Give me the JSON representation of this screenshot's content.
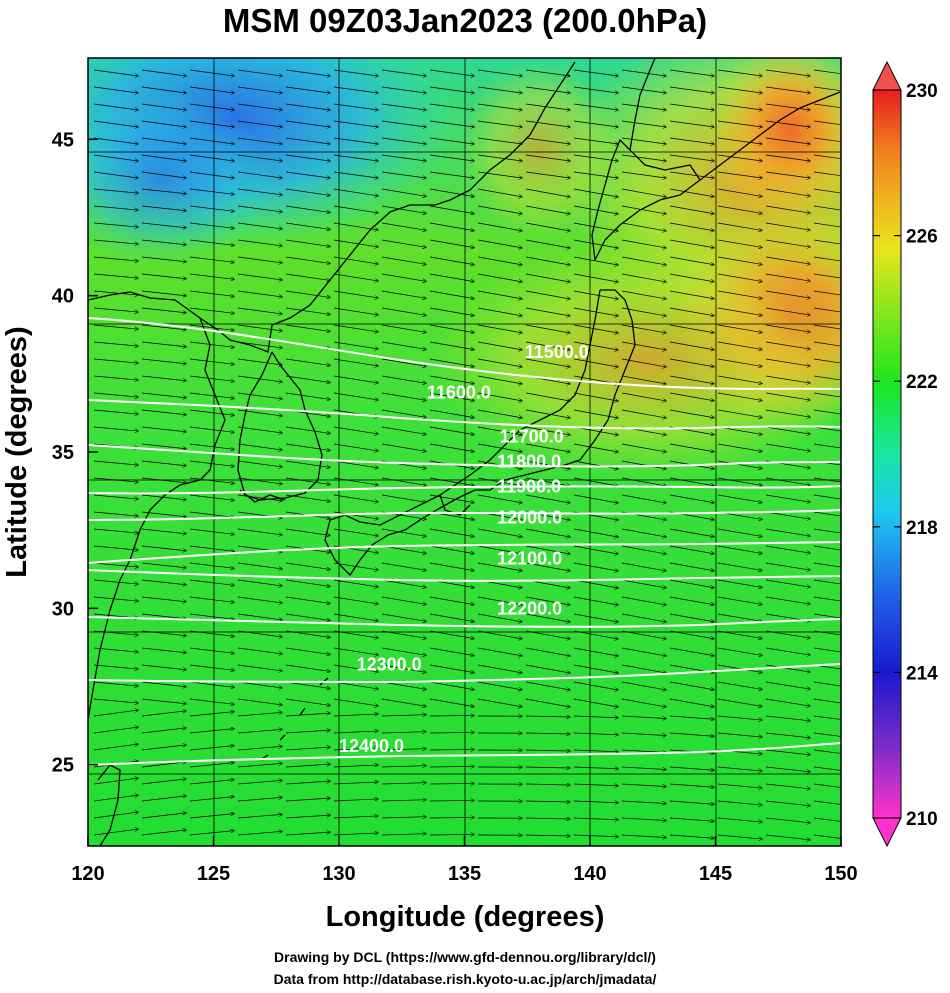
{
  "title": "MSM 09Z03Jan2023 (200.0hPa)",
  "x_axis": {
    "label": "Longitude (degrees)",
    "range": [
      120,
      150
    ],
    "ticks": [
      "120",
      "125",
      "130",
      "135",
      "140",
      "145",
      "150"
    ]
  },
  "y_axis": {
    "label": "Latitude  (degrees)",
    "range": [
      22.4,
      47.6
    ],
    "ticks": [
      "25",
      "30",
      "35",
      "40",
      "45"
    ]
  },
  "colorbar": {
    "range": [
      210,
      230
    ],
    "ticks": [
      "210",
      "214",
      "218",
      "222",
      "226",
      "230"
    ],
    "colors": [
      "#ff33cc",
      "#7a2cc8",
      "#1a1acc",
      "#1f5ee6",
      "#1fc8f0",
      "#19e6a0",
      "#1ee61e",
      "#8ce61e",
      "#e6e61e",
      "#f0b41e",
      "#f07d1e",
      "#e61e1e",
      "#f05050"
    ]
  },
  "contours": [
    {
      "label": "11500.0",
      "lat": 38.0
    },
    {
      "label": "11600.0",
      "lat": 36.9
    },
    {
      "label": "11700.0",
      "lat": 35.6
    },
    {
      "label": "11800.0",
      "lat": 34.8
    },
    {
      "label": "11900.0",
      "lat": 33.9
    },
    {
      "label": "12000.0",
      "lat": 33.0
    },
    {
      "label": "12100.0",
      "lat": 31.7
    },
    {
      "label": "12200.0",
      "lat": 30.1
    },
    {
      "label": "12300.0",
      "lat": 28.2
    },
    {
      "label": "12400.0",
      "lat": 25.6
    }
  ],
  "contour_label_positions": [
    {
      "lon": 137.4,
      "lat": 38.2
    },
    {
      "lon": 133.5,
      "lat": 36.9
    },
    {
      "lon": 136.4,
      "lat": 35.5
    },
    {
      "lon": 136.3,
      "lat": 34.7
    },
    {
      "lon": 136.3,
      "lat": 33.9
    },
    {
      "lon": 136.3,
      "lat": 32.9
    },
    {
      "lon": 136.3,
      "lat": 31.6
    },
    {
      "lon": 136.3,
      "lat": 30.0
    },
    {
      "lon": 130.7,
      "lat": 28.2
    },
    {
      "lon": 130.0,
      "lat": 25.6
    }
  ],
  "credits": [
    "Drawing by DCL (https://www.gfd-dennou.org/library/dcl/)",
    "Data from http://database.rish.kyoto-u.ac.jp/arch/jmadata/"
  ]
}
